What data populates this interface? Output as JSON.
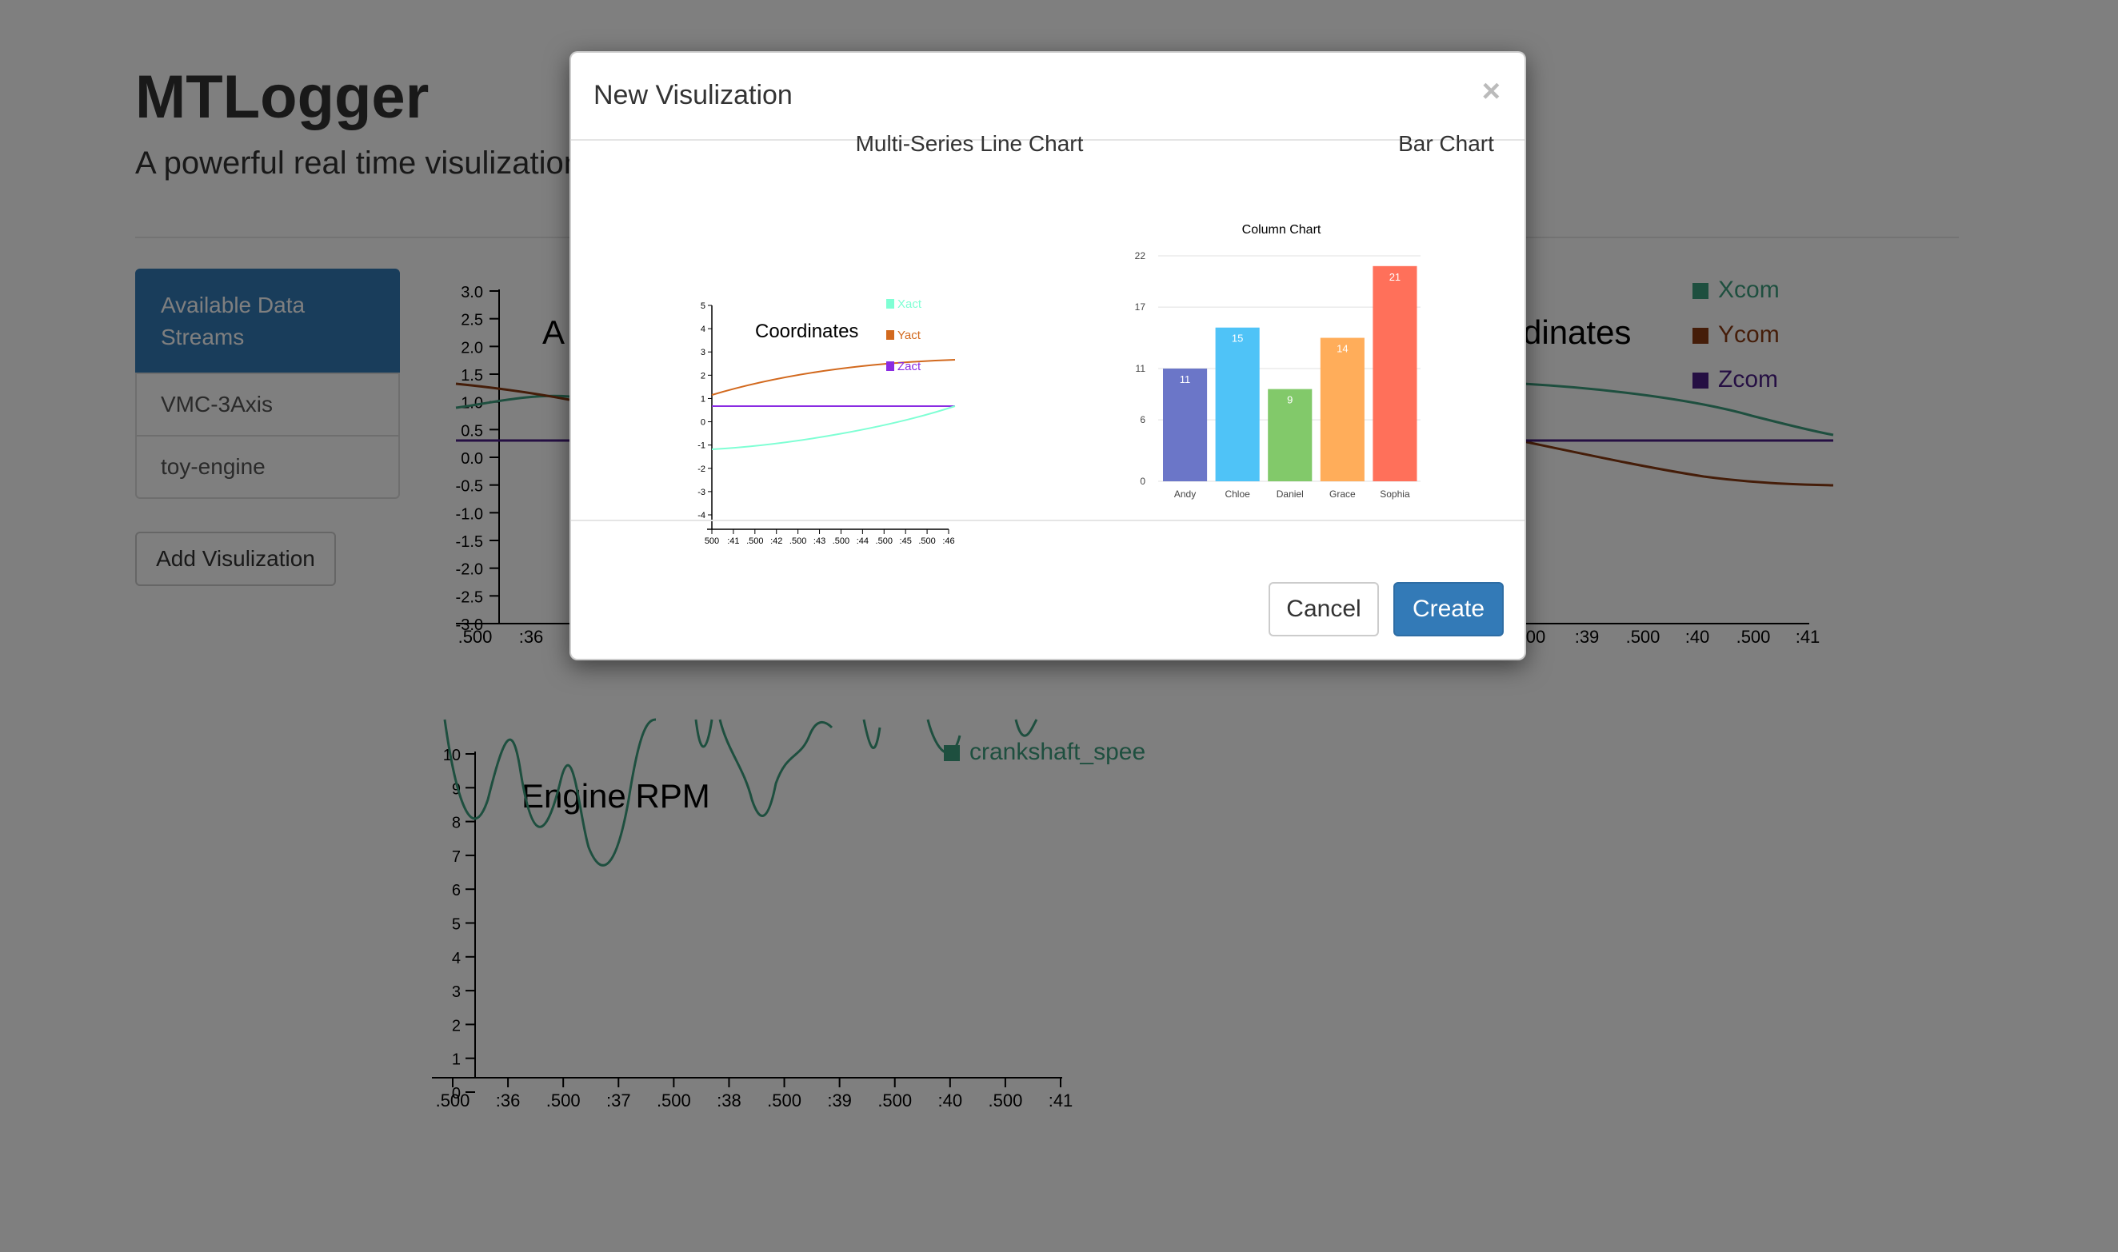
{
  "app": {
    "title": "MTLogger",
    "subtitle": "A powerful real time visulization"
  },
  "sidebar": {
    "items": [
      {
        "label": "Available Data Streams",
        "active": true
      },
      {
        "label": "VMC-3Axis"
      },
      {
        "label": "toy-engine"
      }
    ],
    "add_button": "Add Visulization"
  },
  "background_charts": [
    {
      "type": "line",
      "title_fragments": [
        "A",
        "dinates"
      ],
      "ylim": [
        -3.0,
        3.0
      ],
      "y_ticks": [
        "3.0",
        "2.5",
        "2.0",
        "1.5",
        "1.0",
        "0.5",
        "0.0",
        "-0.5",
        "-1.0",
        "-1.5",
        "-2.0",
        "-2.5",
        "-3.0"
      ],
      "x_ticks_left": [
        ".500",
        ":36"
      ],
      "x_ticks_right": [
        "00",
        ":39",
        ".500",
        ":40",
        ".500",
        ":41"
      ],
      "legend": [
        {
          "name": "Xcom",
          "color": "#3c9f7e"
        },
        {
          "name": "Ycom",
          "color": "#8b3b12"
        },
        {
          "name": "Zcom",
          "color": "#4b1f87"
        }
      ]
    },
    {
      "type": "line",
      "title": "Engine RPM",
      "ylim": [
        0,
        10
      ],
      "y_ticks": [
        "10",
        "9",
        "8",
        "7",
        "6",
        "5",
        "4",
        "3",
        "2",
        "1",
        "0"
      ],
      "x_ticks": [
        ".500",
        ":36",
        ".500",
        ":37",
        ".500",
        ":38",
        ".500",
        ":39",
        ".500",
        ":40",
        ".500",
        ":41"
      ],
      "legend": [
        {
          "name": "crankshaft_spee",
          "color": "#3c9f7e"
        }
      ]
    }
  ],
  "modal": {
    "title": "New Visulization",
    "close_symbol": "×",
    "options": [
      {
        "label": "Multi-Series Line Chart",
        "preview": {
          "title": "Coordinates",
          "legend": [
            {
              "name": "Xact",
              "color": "#7fffd4"
            },
            {
              "name": "Yact",
              "color": "#d2691e"
            },
            {
              "name": "Zact",
              "color": "#8a2be2"
            }
          ],
          "y_ticks": [
            "5",
            "4",
            "3",
            "2",
            "1",
            "0",
            "-1",
            "-2",
            "-3",
            "-4"
          ],
          "x_ticks": [
            "500",
            ":41",
            ".500",
            ":42",
            ".500",
            ":43",
            ".500",
            ":44",
            ".500",
            ":45",
            ".500",
            ":46"
          ]
        }
      },
      {
        "label": "Bar Chart",
        "preview": {
          "title": "Column Chart",
          "y_ticks": [
            "22",
            "17",
            "11",
            "6",
            "0"
          ]
        }
      }
    ],
    "cancel_label": "Cancel",
    "create_label": "Create"
  },
  "chart_data": {
    "type": "bar",
    "title": "Column Chart",
    "categories": [
      "Andy",
      "Chloe",
      "Daniel",
      "Grace",
      "Sophia"
    ],
    "values": [
      11,
      15,
      9,
      14,
      21
    ],
    "colors": [
      "#6b76c8",
      "#4fc3f7",
      "#82c96a",
      "#ffad5a",
      "#ff705a"
    ],
    "ylim": [
      0,
      22
    ],
    "grid": true
  }
}
